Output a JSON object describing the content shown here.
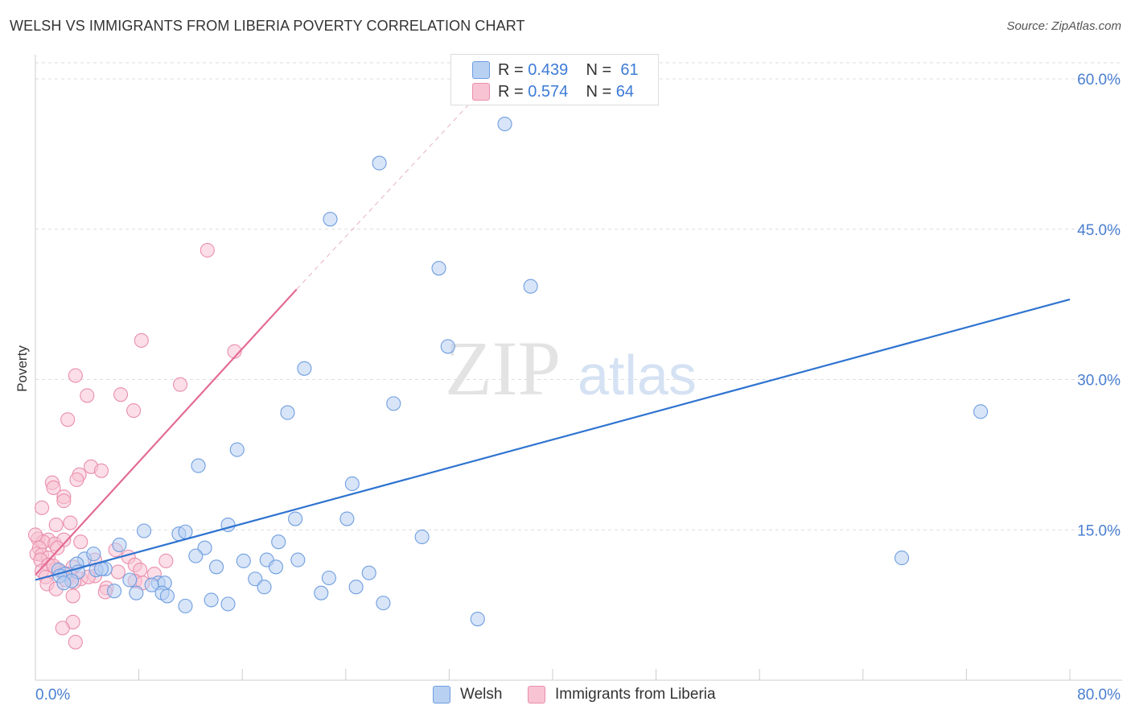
{
  "title": "WELSH VS IMMIGRANTS FROM LIBERIA POVERTY CORRELATION CHART",
  "source": "Source: ZipAtlas.com",
  "watermark": {
    "zip": "ZIP",
    "atlas": "atlas"
  },
  "legend": {
    "r_label": "R =",
    "n_label": "N =",
    "welsh": {
      "r": "0.439",
      "n": "61"
    },
    "liberia": {
      "r": "0.574",
      "n": "64"
    }
  },
  "colors": {
    "welsh_fill": "#b8d0f2",
    "welsh_stroke": "#6f9ee0",
    "welsh_line": "#2f74d0",
    "liberia_fill": "#f8c3d3",
    "liberia_stroke": "#ea8fad",
    "liberia_line": "#e36b93",
    "tick_text": "#4a7fd0",
    "grid": "#dddddd"
  },
  "chart_data": {
    "type": "scatter",
    "xlabel": "",
    "ylabel": "Poverty",
    "xlim": [
      0,
      80
    ],
    "ylim": [
      0,
      60
    ],
    "x_tick_labels": [
      "0.0%",
      "80.0%"
    ],
    "y_ticks": [
      15,
      30,
      45,
      60
    ],
    "y_tick_labels": [
      "15.0%",
      "30.0%",
      "45.0%",
      "60.0%"
    ],
    "grid": true,
    "legend_position": "top-center",
    "series": [
      {
        "name": "Welsh",
        "r": 0.439,
        "n": 61,
        "trend": {
          "x0": 0,
          "y0": 10.0,
          "x1": 80,
          "y1": 38.0,
          "dashed_to": null
        },
        "points": [
          [
            36.3,
            55.5
          ],
          [
            26.6,
            51.6
          ],
          [
            22.8,
            46.0
          ],
          [
            31.2,
            41.1
          ],
          [
            38.3,
            39.3
          ],
          [
            31.9,
            33.3
          ],
          [
            20.8,
            31.1
          ],
          [
            27.7,
            27.6
          ],
          [
            19.5,
            26.7
          ],
          [
            73.1,
            26.8
          ],
          [
            15.6,
            23.0
          ],
          [
            12.6,
            21.4
          ],
          [
            24.5,
            19.6
          ],
          [
            14.9,
            15.5
          ],
          [
            20.1,
            16.1
          ],
          [
            24.1,
            16.1
          ],
          [
            29.9,
            14.3
          ],
          [
            8.4,
            14.9
          ],
          [
            11.1,
            14.6
          ],
          [
            11.6,
            14.8
          ],
          [
            18.8,
            13.8
          ],
          [
            6.5,
            13.5
          ],
          [
            13.1,
            13.2
          ],
          [
            67.0,
            12.2
          ],
          [
            3.8,
            12.1
          ],
          [
            4.5,
            12.6
          ],
          [
            12.4,
            12.4
          ],
          [
            17.9,
            12.0
          ],
          [
            16.1,
            11.9
          ],
          [
            20.3,
            12.0
          ],
          [
            3.2,
            11.6
          ],
          [
            5.4,
            11.1
          ],
          [
            4.7,
            11.0
          ],
          [
            5.1,
            11.1
          ],
          [
            14.0,
            11.3
          ],
          [
            18.6,
            11.3
          ],
          [
            1.8,
            11.0
          ],
          [
            3.3,
            10.8
          ],
          [
            2.3,
            10.6
          ],
          [
            1.9,
            10.4
          ],
          [
            25.8,
            10.7
          ],
          [
            22.7,
            10.2
          ],
          [
            17.0,
            10.1
          ],
          [
            7.3,
            10.0
          ],
          [
            9.5,
            9.7
          ],
          [
            2.8,
            9.9
          ],
          [
            2.2,
            9.7
          ],
          [
            9.0,
            9.5
          ],
          [
            10.0,
            9.7
          ],
          [
            17.7,
            9.3
          ],
          [
            24.8,
            9.3
          ],
          [
            6.1,
            8.9
          ],
          [
            7.8,
            8.7
          ],
          [
            9.8,
            8.7
          ],
          [
            10.2,
            8.4
          ],
          [
            22.1,
            8.7
          ],
          [
            13.6,
            8.0
          ],
          [
            14.9,
            7.6
          ],
          [
            11.6,
            7.4
          ],
          [
            26.9,
            7.7
          ],
          [
            34.2,
            6.1
          ]
        ]
      },
      {
        "name": "Immigrants from Liberia",
        "r": 0.574,
        "n": 64,
        "trend": {
          "x0": 0,
          "y0": 10.5,
          "x1": 20.2,
          "y1": 39.0,
          "dashed_to": [
            35.0,
            59.5
          ]
        },
        "points": [
          [
            13.3,
            42.9
          ],
          [
            8.2,
            33.9
          ],
          [
            15.4,
            32.8
          ],
          [
            3.1,
            30.4
          ],
          [
            11.2,
            29.5
          ],
          [
            4.0,
            28.4
          ],
          [
            6.6,
            28.5
          ],
          [
            7.6,
            26.9
          ],
          [
            2.5,
            26.0
          ],
          [
            4.3,
            21.3
          ],
          [
            5.1,
            20.9
          ],
          [
            3.4,
            20.5
          ],
          [
            1.3,
            19.7
          ],
          [
            3.2,
            20.0
          ],
          [
            1.4,
            19.2
          ],
          [
            2.2,
            18.3
          ],
          [
            2.2,
            17.9
          ],
          [
            0.5,
            17.2
          ],
          [
            1.6,
            15.5
          ],
          [
            2.7,
            15.7
          ],
          [
            0.2,
            14.1
          ],
          [
            1.0,
            14.0
          ],
          [
            0.6,
            13.8
          ],
          [
            1.5,
            13.6
          ],
          [
            2.2,
            14.0
          ],
          [
            3.5,
            13.8
          ],
          [
            0.3,
            13.2
          ],
          [
            1.7,
            13.2
          ],
          [
            6.2,
            13.0
          ],
          [
            0.1,
            12.6
          ],
          [
            0.5,
            12.5
          ],
          [
            1.0,
            12.2
          ],
          [
            0.4,
            12.0
          ],
          [
            4.6,
            12.0
          ],
          [
            7.2,
            12.3
          ],
          [
            1.0,
            11.5
          ],
          [
            2.9,
            11.3
          ],
          [
            1.6,
            11.1
          ],
          [
            7.7,
            11.5
          ],
          [
            10.1,
            11.9
          ],
          [
            0.5,
            10.9
          ],
          [
            2.0,
            10.8
          ],
          [
            2.6,
            10.6
          ],
          [
            6.4,
            10.8
          ],
          [
            8.1,
            11.0
          ],
          [
            0.8,
            10.3
          ],
          [
            2.4,
            10.0
          ],
          [
            3.5,
            10.1
          ],
          [
            4.6,
            10.4
          ],
          [
            9.2,
            10.6
          ],
          [
            7.7,
            9.9
          ],
          [
            0.9,
            9.6
          ],
          [
            3.0,
            9.8
          ],
          [
            5.5,
            9.2
          ],
          [
            1.6,
            9.1
          ],
          [
            5.4,
            8.8
          ],
          [
            2.9,
            8.4
          ],
          [
            2.9,
            5.8
          ],
          [
            2.1,
            5.2
          ],
          [
            3.1,
            3.8
          ],
          [
            4.1,
            10.3
          ],
          [
            8.3,
            9.7
          ],
          [
            1.4,
            11.4
          ],
          [
            0.0,
            14.5
          ]
        ]
      }
    ]
  },
  "bottom_legend": [
    "Welsh",
    "Immigrants from Liberia"
  ]
}
